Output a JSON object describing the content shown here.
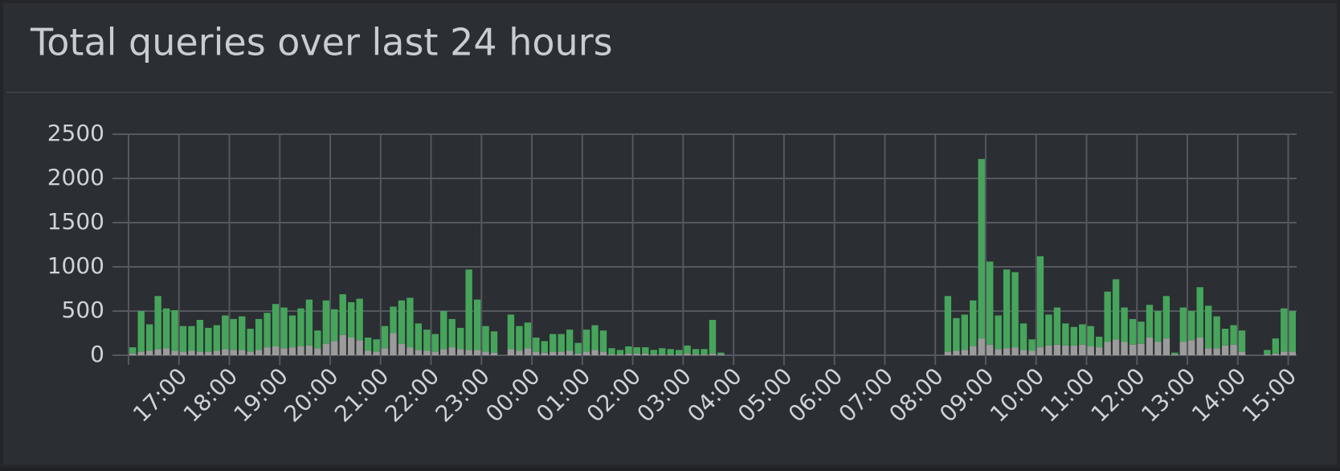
{
  "chart_data": {
    "type": "bar",
    "title": "Total queries over last 24 hours",
    "stacked": true,
    "grid": true,
    "categories": [
      null,
      null,
      null,
      null,
      null,
      null,
      "17:00",
      null,
      null,
      null,
      null,
      null,
      "18:00",
      null,
      null,
      null,
      null,
      null,
      "19:00",
      null,
      null,
      null,
      null,
      null,
      "20:00",
      null,
      null,
      null,
      null,
      null,
      "21:00",
      null,
      null,
      null,
      null,
      null,
      "22:00",
      null,
      null,
      null,
      null,
      null,
      "23:00",
      null,
      null,
      null,
      null,
      null,
      "00:00",
      null,
      null,
      null,
      null,
      null,
      "01:00",
      null,
      null,
      null,
      null,
      null,
      "02:00",
      null,
      null,
      null,
      null,
      null,
      "03:00",
      null,
      null,
      null,
      null,
      null,
      "04:00",
      null,
      null,
      null,
      null,
      null,
      "05:00",
      null,
      null,
      null,
      null,
      null,
      "06:00",
      null,
      null,
      null,
      null,
      null,
      "07:00",
      null,
      null,
      null,
      null,
      null,
      "08:00",
      null,
      null,
      null,
      null,
      null,
      "09:00",
      null,
      null,
      null,
      null,
      null,
      "10:00",
      null,
      null,
      null,
      null,
      null,
      "11:00",
      null,
      null,
      null,
      null,
      null,
      "12:00",
      null,
      null,
      null,
      null,
      null,
      "13:00",
      null,
      null,
      null,
      null,
      null,
      "14:00",
      null,
      null,
      null,
      null,
      null,
      "15:00"
    ],
    "series": [
      {
        "color": "#9b9b9b",
        "values": [
          20,
          40,
          50,
          70,
          80,
          50,
          40,
          50,
          40,
          40,
          50,
          70,
          60,
          60,
          40,
          60,
          90,
          100,
          80,
          90,
          100,
          110,
          80,
          130,
          160,
          230,
          200,
          170,
          50,
          40,
          80,
          250,
          130,
          90,
          60,
          50,
          40,
          70,
          90,
          70,
          60,
          60,
          40,
          30,
          0,
          70,
          50,
          80,
          40,
          30,
          40,
          40,
          50,
          20,
          40,
          60,
          40,
          10,
          10,
          20,
          20,
          20,
          10,
          10,
          10,
          10,
          20,
          10,
          10,
          20,
          10,
          0,
          0,
          0,
          0,
          0,
          0,
          0,
          0,
          0,
          0,
          0,
          0,
          0,
          0,
          0,
          0,
          0,
          0,
          0,
          0,
          0,
          0,
          0,
          0,
          0,
          0,
          40,
          50,
          60,
          100,
          190,
          120,
          70,
          80,
          90,
          60,
          50,
          90,
          110,
          120,
          110,
          110,
          120,
          100,
          90,
          150,
          180,
          150,
          120,
          130,
          200,
          150,
          190,
          10,
          150,
          170,
          200,
          80,
          80,
          110,
          120,
          40,
          0,
          0,
          10,
          20,
          40,
          40
        ]
      },
      {
        "color": "#46a55b",
        "values": [
          70,
          460,
          300,
          600,
          450,
          460,
          290,
          280,
          360,
          270,
          290,
          380,
          350,
          380,
          260,
          350,
          390,
          480,
          460,
          360,
          430,
          520,
          200,
          490,
          360,
          460,
          400,
          470,
          150,
          140,
          250,
          300,
          490,
          560,
          300,
          240,
          200,
          430,
          320,
          240,
          910,
          570,
          290,
          240,
          0,
          390,
          280,
          290,
          160,
          130,
          200,
          200,
          240,
          120,
          250,
          280,
          240,
          70,
          50,
          80,
          70,
          70,
          50,
          70,
          60,
          50,
          90,
          60,
          60,
          380,
          20,
          0,
          0,
          0,
          0,
          0,
          0,
          0,
          0,
          0,
          0,
          0,
          0,
          0,
          0,
          0,
          0,
          0,
          0,
          0,
          0,
          0,
          0,
          0,
          0,
          0,
          0,
          630,
          370,
          400,
          520,
          2030,
          940,
          380,
          890,
          850,
          300,
          130,
          1030,
          350,
          420,
          250,
          210,
          230,
          230,
          120,
          570,
          680,
          390,
          290,
          250,
          370,
          350,
          480,
          20,
          390,
          330,
          570,
          480,
          360,
          190,
          220,
          240,
          0,
          0,
          50,
          170,
          490,
          460
        ]
      }
    ],
    "ylim": [
      0,
      2500
    ],
    "yticks": [
      0,
      500,
      1000,
      1500,
      2000,
      2500
    ]
  }
}
